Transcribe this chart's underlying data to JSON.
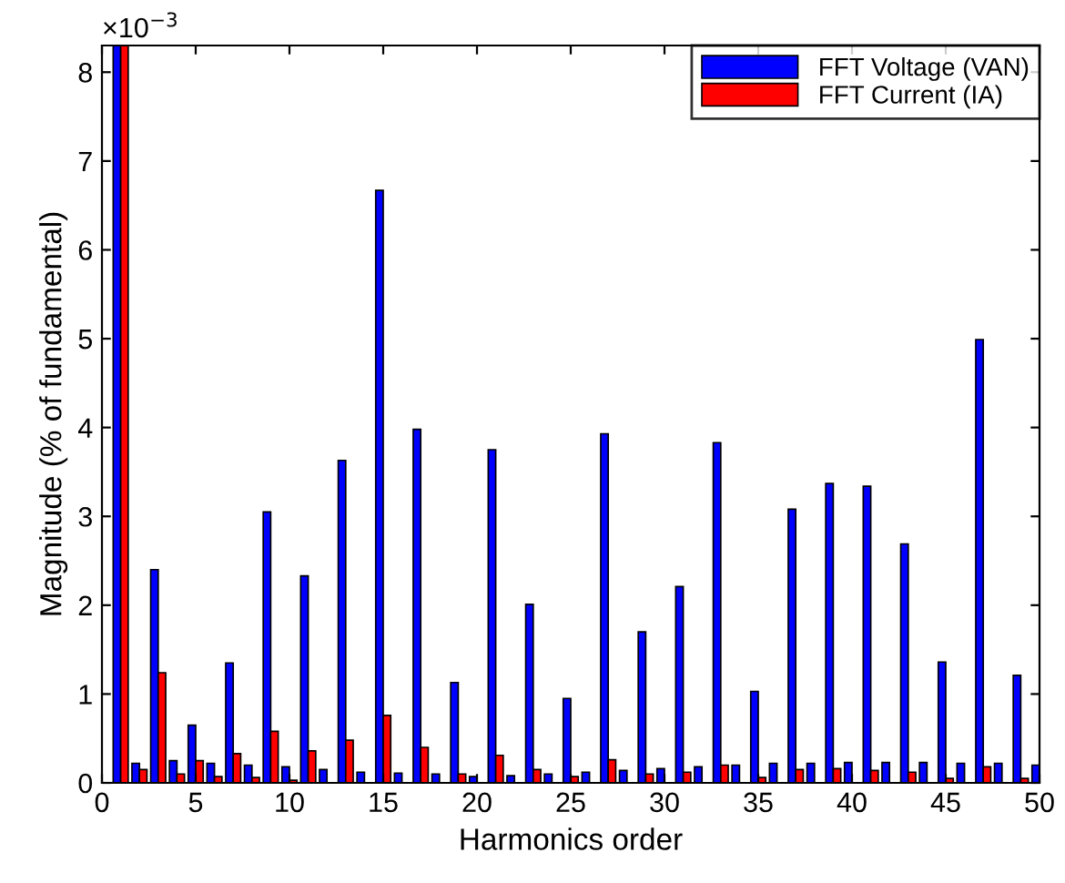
{
  "chart_data": {
    "type": "bar",
    "xlabel": "Harmonics order",
    "ylabel": "Magnitude (% of fundamental)",
    "annotations": [
      "×10$^{−3}$"
    ],
    "x": [
      1,
      2,
      3,
      4,
      5,
      6,
      7,
      8,
      9,
      10,
      11,
      12,
      13,
      14,
      15,
      16,
      17,
      18,
      19,
      20,
      21,
      22,
      23,
      24,
      25,
      26,
      27,
      28,
      29,
      30,
      31,
      32,
      33,
      34,
      35,
      36,
      37,
      38,
      39,
      40,
      41,
      42,
      43,
      44,
      45,
      46,
      47,
      48,
      49,
      50
    ],
    "series": [
      {
        "name": "FFT Voltage (VAN)",
        "color": "#0000ff",
        "values": [
          8.3,
          0.22,
          2.4,
          0.25,
          0.65,
          0.22,
          1.35,
          0.2,
          3.05,
          0.18,
          2.33,
          0.15,
          3.63,
          0.12,
          6.67,
          0.11,
          3.98,
          0.1,
          1.13,
          0.07,
          3.75,
          0.08,
          2.01,
          0.1,
          0.95,
          0.12,
          3.93,
          0.14,
          1.7,
          0.16,
          2.21,
          0.18,
          3.83,
          0.2,
          1.03,
          0.22,
          3.08,
          0.22,
          3.37,
          0.23,
          3.34,
          0.23,
          2.69,
          0.23,
          1.36,
          0.22,
          4.99,
          0.22,
          1.21,
          0.2
        ]
      },
      {
        "name": "FFT Current (IA)",
        "color": "#ff0000",
        "values": [
          8.3,
          0.15,
          1.24,
          0.1,
          0.25,
          0.07,
          0.33,
          0.06,
          0.58,
          0.03,
          0.36,
          null,
          0.48,
          null,
          0.76,
          null,
          0.4,
          null,
          0.1,
          null,
          0.31,
          null,
          0.15,
          null,
          0.07,
          null,
          0.26,
          null,
          0.1,
          null,
          0.12,
          null,
          0.2,
          null,
          0.06,
          null,
          0.15,
          null,
          0.16,
          null,
          0.14,
          null,
          0.12,
          null,
          0.05,
          null,
          0.18,
          null,
          0.05,
          null
        ]
      }
    ],
    "xlim": [
      0,
      50
    ],
    "xticks": [
      0,
      5,
      10,
      15,
      20,
      25,
      30,
      35,
      40,
      45,
      50
    ],
    "ylim": [
      0,
      8.3
    ],
    "yticks": [
      0,
      1,
      2,
      3,
      4,
      5,
      6,
      7,
      8
    ],
    "grid": false,
    "legend": "top right"
  }
}
